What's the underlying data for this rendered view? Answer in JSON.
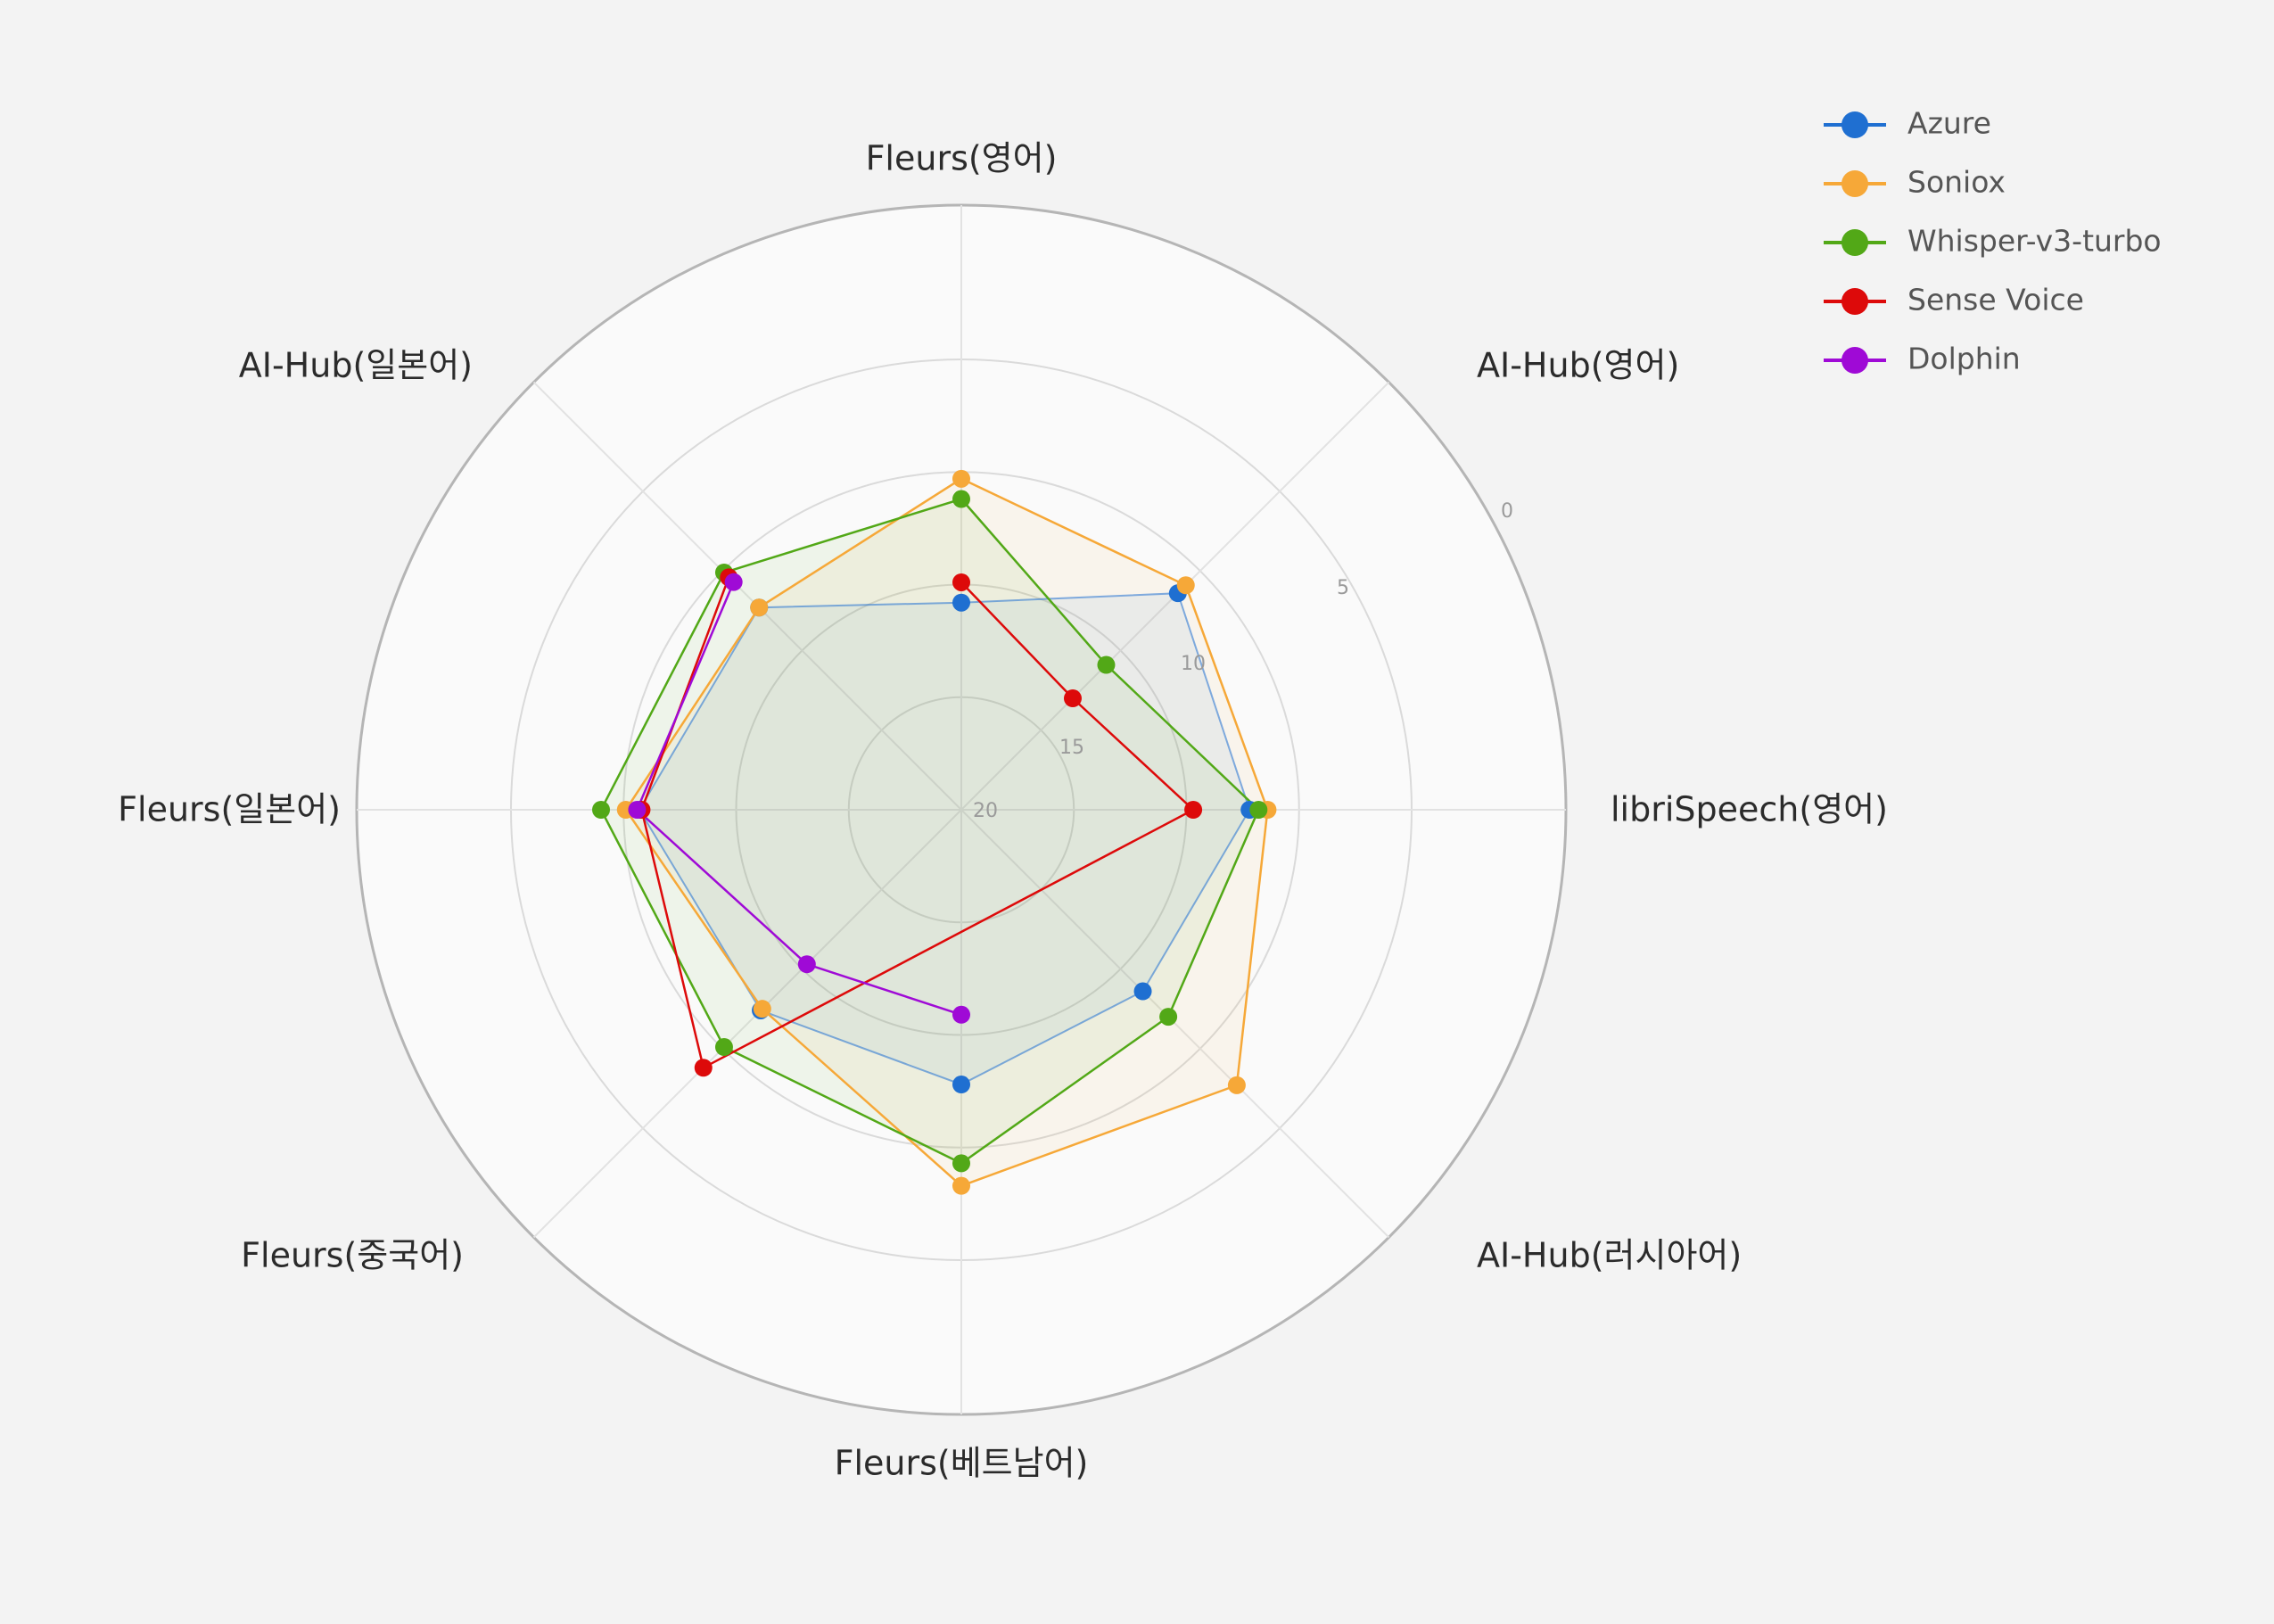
{
  "chart_data": {
    "type": "radar",
    "title": "",
    "axes": [
      "Fleurs(영어)",
      "AI-Hub(영어)",
      "libriSpeech(영어)",
      "AI-Hub(러시아어)",
      "Fleurs(베트남어)",
      "Fleurs(중국어)",
      "Fleurs(일본어)",
      "AI-Hub(일본어)"
    ],
    "radial_range": [
      20,
      0
    ],
    "radial_reversed": true,
    "radial_ticks": [
      0,
      5,
      10,
      15,
      20
    ],
    "grid": true,
    "legend_position": "top-right",
    "series": [
      {
        "name": "Azure",
        "color": "#1f6fd1",
        "values": [
          10.8,
          6.4,
          7.2,
          8.6,
          7.8,
          7.4,
          5.7,
          7.3
        ]
      },
      {
        "name": "Soniox",
        "color": "#f6a838",
        "values": [
          5.3,
          5.9,
          6.4,
          2.7,
          3.3,
          7.5,
          5.1,
          7.3
        ]
      },
      {
        "name": "Whisper-v3-turbo",
        "color": "#52a817",
        "values": [
          6.2,
          10.9,
          6.8,
          7.0,
          4.3,
          5.1,
          4.0,
          5.1
        ]
      },
      {
        "name": "Sense Voice",
        "color": "#dd0a0a",
        "values": [
          9.9,
          13.0,
          9.7,
          null,
          null,
          3.8,
          5.8,
          5.4
        ]
      },
      {
        "name": "Dolphin",
        "color": "#9f0ad6",
        "values": [
          null,
          null,
          null,
          null,
          10.9,
          10.3,
          5.6,
          5.7
        ]
      }
    ]
  },
  "colors": {
    "background": "#f3f3f3",
    "plot_background": "#fafafa",
    "grid": "#dadada",
    "outer_ring": "#b5b5b5"
  }
}
